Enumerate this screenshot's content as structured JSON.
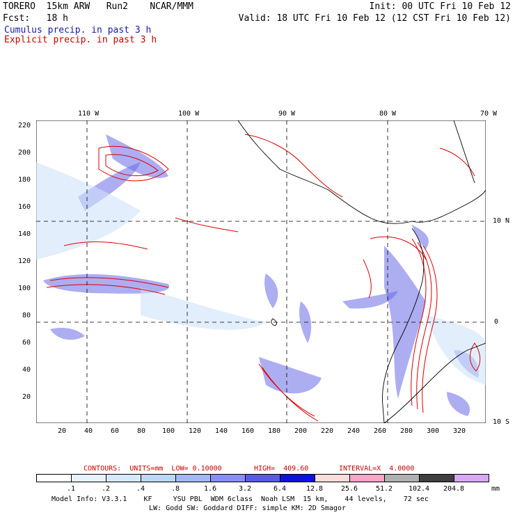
{
  "header": {
    "model": "TORERO  15km ARW   Run2    NCAR/MMM",
    "init": "Init: 00 UTC Fri 10 Feb 12",
    "fcst": "Fcst:   18 h",
    "valid": "Valid: 18 UTC Fri 10 Feb 12 (12 CST Fri 10 Feb 12)",
    "cumulus_label": "Cumulus precip. in past 3 h",
    "explicit_label": "Explicit precip. in past 3 h"
  },
  "map": {
    "top_lon_labels": [
      "110 W",
      "100 W",
      "90 W",
      "80 W",
      "70 W"
    ],
    "right_lat_labels": [
      "10 N",
      "0",
      "10 S"
    ],
    "y_ticks": [
      "220",
      "200",
      "180",
      "160",
      "140",
      "120",
      "100",
      "80",
      "60",
      "40",
      "20"
    ],
    "x_ticks": [
      "20",
      "40",
      "60",
      "80",
      "100",
      "120",
      "140",
      "160",
      "180",
      "200",
      "220",
      "240",
      "260",
      "280",
      "300",
      "320"
    ]
  },
  "contours_info": {
    "contours": "CONTOURS:  UNITS=mm  LOW= 0.10000",
    "high": "HIGH=  409.60",
    "interval": "INTERVAL=X  4.0000"
  },
  "colorbar": {
    "labels": [
      ".1",
      ".2",
      ".4",
      ".8",
      "1.6",
      "3.2",
      "6.4",
      "12.8",
      "25.6",
      "51.2",
      "102.4",
      "204.8"
    ],
    "unit": "mm",
    "colors": [
      "#ffffff",
      "#e8f2fc",
      "#d6e8fa",
      "#bcd6f6",
      "#a2b8f2",
      "#8a8ef0",
      "#5a5ae6",
      "#1010e0",
      "#fadcdc",
      "#f6a6c6",
      "#b0b0b0",
      "#404040",
      "#d8a8f4"
    ]
  },
  "footer": {
    "line1": "Model Info: V3.3.1    KF     YSU PBL  WDM 6class  Noah LSM  15 km,    44 levels,    72 sec",
    "line2": "LW: Godd SW: Goddard DIFF: simple KM: 2D Smagor"
  }
}
